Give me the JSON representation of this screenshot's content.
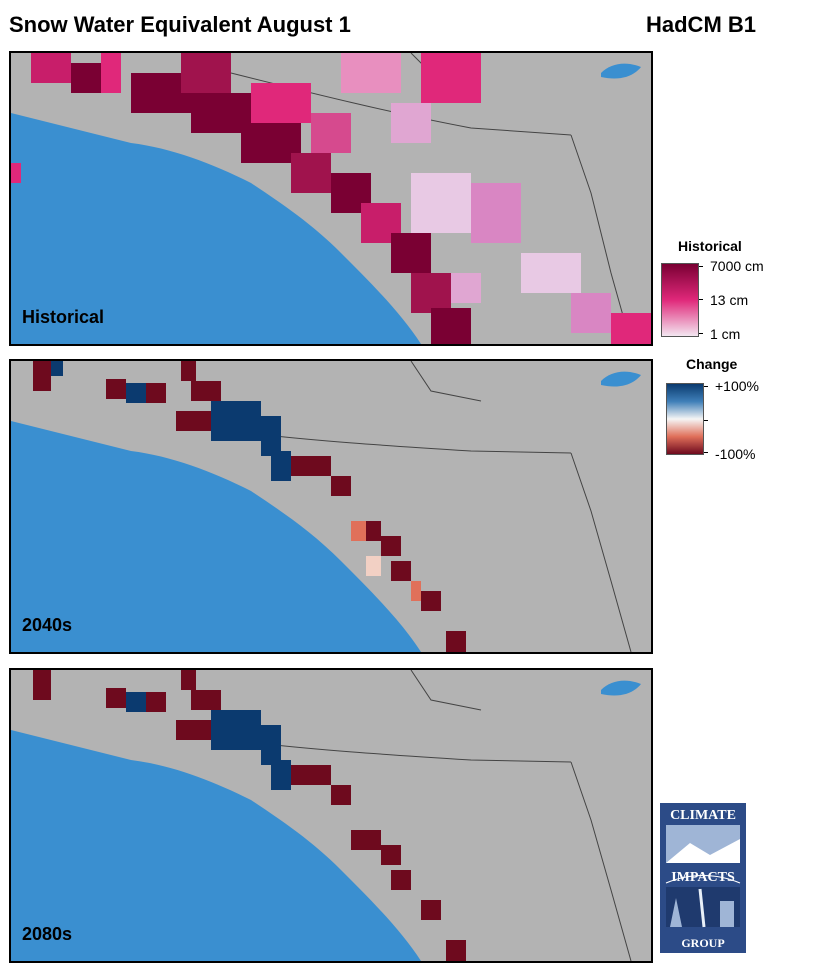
{
  "header": {
    "title": "Snow Water Equivalent August 1",
    "scenario": "HadCM B1"
  },
  "panels": [
    {
      "label": "Historical"
    },
    {
      "label": "2040s"
    },
    {
      "label": "2080s"
    }
  ],
  "legend_historical": {
    "title": "Historical",
    "max_label": "7000 cm",
    "mid_label": "13 cm",
    "min_label": "1 cm"
  },
  "legend_change": {
    "title": "Change",
    "max_label": "+100%",
    "min_label": "-100%"
  },
  "logo": {
    "line1": "CLIMATE",
    "line2": "IMPACTS",
    "line3": "GROUP"
  },
  "colors": {
    "ocean": "#3a8fd0",
    "land": "#b3b3b3",
    "swe_high": "#7a0033",
    "swe_mid": "#e0287a",
    "swe_low": "#e8c9e4",
    "change_pos": "#0b3a6f",
    "change_neg": "#6e0a1e"
  }
}
